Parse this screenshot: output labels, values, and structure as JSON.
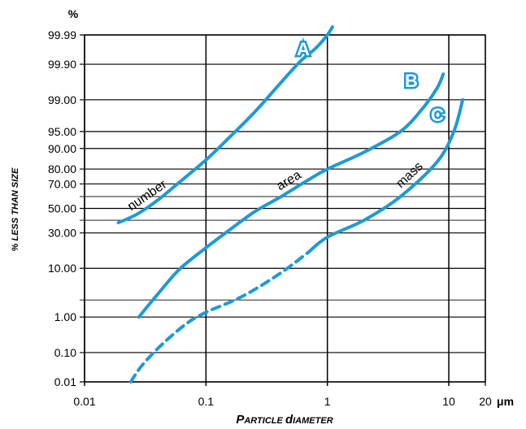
{
  "chart_data": {
    "type": "line",
    "title": "",
    "ylabel": "% LESS THAN SIZE",
    "xlabel": "PARTICLE DIAMETER",
    "y_unit": "%",
    "x_unit": "μm",
    "x_scale": "log",
    "y_scale": "probability",
    "xlim": [
      0.01,
      20
    ],
    "ylim": [
      0.01,
      99.99
    ],
    "x_ticks": [
      0.01,
      0.1,
      1,
      10,
      20
    ],
    "x_tick_labels": [
      "0.01",
      "0.1",
      "1",
      "10",
      "20"
    ],
    "y_ticks": [
      0.01,
      0.1,
      1,
      10,
      30,
      50,
      70,
      80,
      90,
      95,
      99,
      99.9,
      99.99
    ],
    "y_tick_labels": [
      "0.01",
      "0.10",
      "1.00",
      "10.00",
      "30.00",
      "50.00",
      "70.00",
      "80.00",
      "90.00",
      "95.00",
      "99.00",
      "99.90",
      "99.99"
    ],
    "minor_y_lines": [
      2.5,
      40,
      60
    ],
    "grid": true,
    "series": [
      {
        "id": "A",
        "label": "A",
        "curve_label": "number",
        "color": "#1e9ad6",
        "x": [
          0.019,
          0.027,
          0.04,
          0.06,
          0.1,
          0.15,
          0.25,
          0.4,
          0.6,
          0.8,
          1.0,
          1.1
        ],
        "y": [
          38,
          45,
          57,
          71,
          85,
          93,
          98,
          99.6,
          99.92,
          99.97,
          99.99,
          99.995
        ],
        "dashed_below_x": null
      },
      {
        "id": "B",
        "label": "B",
        "curve_label": "area",
        "color": "#1e9ad6",
        "x": [
          0.028,
          0.04,
          0.06,
          0.1,
          0.15,
          0.25,
          0.4,
          0.7,
          1.0,
          2.0,
          4.0,
          6.0,
          8.0,
          9.0
        ],
        "y": [
          1.0,
          3.3,
          9.5,
          20,
          31,
          47,
          59,
          73,
          80,
          88.5,
          95,
          98.3,
          99.5,
          99.8
        ],
        "dashed_below_x": null
      },
      {
        "id": "C",
        "label": "C",
        "curve_label": "mass",
        "color": "#1e9ad6",
        "x": [
          0.024,
          0.03,
          0.045,
          0.07,
          0.1,
          0.2,
          0.4,
          0.7,
          1.0,
          2.0,
          4.0,
          8.0,
          11.0,
          13.0
        ],
        "y": [
          0.01,
          0.04,
          0.2,
          0.7,
          1.3,
          3.0,
          8.0,
          17.5,
          27,
          40,
          60,
          84,
          95,
          99.0
        ],
        "dashed_below_x": 0.7
      }
    ]
  }
}
